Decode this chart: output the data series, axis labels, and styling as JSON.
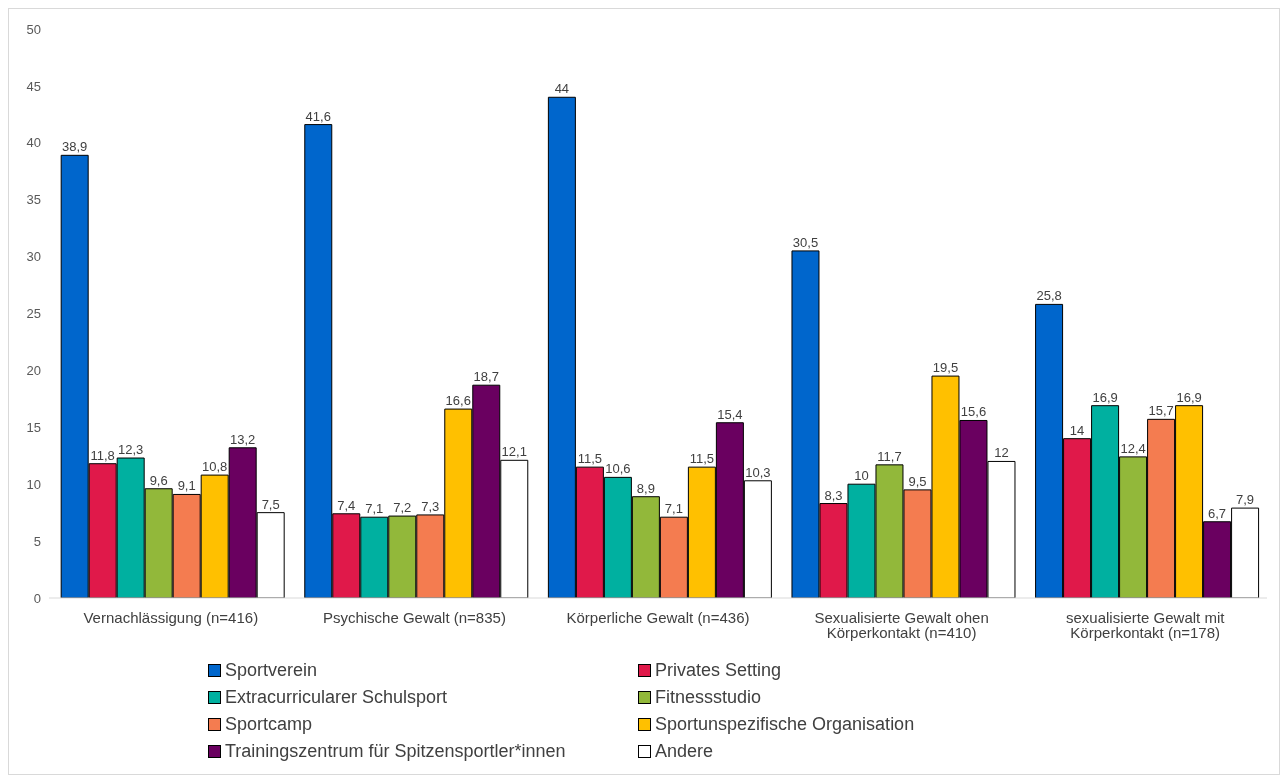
{
  "chart_data": {
    "type": "bar",
    "categories": [
      "Vernachlässigung (n=416)",
      "Psychische Gewalt (n=835)",
      "Körperliche Gewalt (n=436)",
      "Sexualisierte Gewalt ohen Körperkontakt (n=410)",
      "sexualisierte Gewalt mit Körperkontakt (n=178)"
    ],
    "series": [
      {
        "name": "Sportverein",
        "color": "#0066cc",
        "values": [
          38.9,
          41.6,
          44,
          30.5,
          25.8
        ],
        "value_labels": [
          "38,9",
          "41,6",
          "44",
          "30,5",
          "25,8"
        ]
      },
      {
        "name": "Privates Setting",
        "color": "#e0194a",
        "values": [
          11.8,
          7.4,
          11.5,
          8.3,
          14
        ],
        "value_labels": [
          "11,8",
          "7,4",
          "11,5",
          "8,3",
          "14"
        ]
      },
      {
        "name": "Extracurricularer Schulsport",
        "color": "#00b0a0",
        "values": [
          12.3,
          7.1,
          10.6,
          10,
          16.9
        ],
        "value_labels": [
          "12,3",
          "7,1",
          "10,6",
          "10",
          "16,9"
        ]
      },
      {
        "name": "Fitnessstudio",
        "color": "#92b83a",
        "values": [
          9.6,
          7.2,
          8.9,
          11.7,
          12.4
        ],
        "value_labels": [
          "9,6",
          "7,2",
          "8,9",
          "11,7",
          "12,4"
        ]
      },
      {
        "name": "Sportcamp",
        "color": "#f47c50",
        "values": [
          9.1,
          7.3,
          7.1,
          9.5,
          15.7
        ],
        "value_labels": [
          "9,1",
          "7,3",
          "7,1",
          "9,5",
          "15,7"
        ]
      },
      {
        "name": "Sportunspezifische Organisation",
        "color": "#ffc000",
        "values": [
          10.8,
          16.6,
          11.5,
          19.5,
          16.9
        ],
        "value_labels": [
          "10,8",
          "16,6",
          "11,5",
          "19,5",
          "16,9"
        ]
      },
      {
        "name": "Trainingszentrum für Spitzensportler*innen",
        "color": "#6a0060",
        "values": [
          13.2,
          18.7,
          15.4,
          15.6,
          6.7
        ],
        "value_labels": [
          "13,2",
          "18,7",
          "15,4",
          "15,6",
          "6,7"
        ]
      },
      {
        "name": "Andere",
        "color": "#ffffff",
        "values": [
          7.5,
          12.1,
          10.3,
          12,
          7.9
        ],
        "value_labels": [
          "7,5",
          "12,1",
          "10,3",
          "12",
          "7,9"
        ]
      }
    ],
    "ylim": [
      0,
      50
    ],
    "yticks": [
      0,
      5,
      10,
      15,
      20,
      25,
      30,
      35,
      40,
      45,
      50
    ],
    "grid": false,
    "legend": "bottom"
  }
}
